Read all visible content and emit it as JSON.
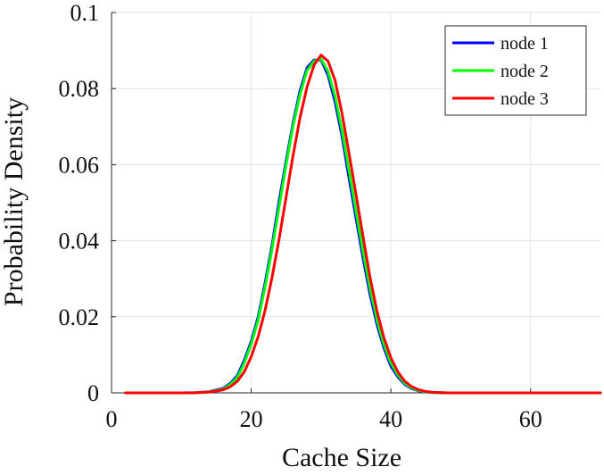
{
  "chart_data": {
    "type": "line",
    "xlabel": "Cache Size",
    "ylabel": "Probability Density",
    "xlim": [
      0,
      70
    ],
    "ylim": [
      0,
      0.1
    ],
    "x_ticks": [
      0,
      20,
      40,
      60
    ],
    "y_ticks": [
      0,
      0.02,
      0.04,
      0.06,
      0.08,
      0.1
    ],
    "x_tick_labels": [
      "0",
      "20",
      "40",
      "60"
    ],
    "y_tick_labels": [
      "0",
      "0.02",
      "0.04",
      "0.06",
      "0.08",
      "0.1"
    ],
    "grid": true,
    "legend_position": "top-right",
    "series": [
      {
        "name": "node 1",
        "color": "#0000ff",
        "x": [
          2,
          4,
          6,
          8,
          10,
          12,
          14,
          16,
          17,
          18,
          19,
          20,
          21,
          22,
          23,
          24,
          25,
          26,
          27,
          28,
          29,
          30,
          31,
          32,
          33,
          34,
          35,
          36,
          37,
          38,
          39,
          40,
          41,
          42,
          43,
          44,
          45,
          46,
          48,
          50,
          55,
          60,
          65,
          70
        ],
        "y": [
          0,
          0,
          0,
          0,
          0,
          5e-05,
          0.0003,
          0.0012,
          0.0025,
          0.0045,
          0.0085,
          0.0135,
          0.02,
          0.029,
          0.039,
          0.0505,
          0.061,
          0.071,
          0.0795,
          0.0855,
          0.0875,
          0.0875,
          0.0835,
          0.0765,
          0.0675,
          0.0565,
          0.046,
          0.0355,
          0.026,
          0.018,
          0.0118,
          0.007,
          0.0042,
          0.0022,
          0.0011,
          0.0005,
          0.0002,
          0.0001,
          0,
          0,
          0,
          0,
          0,
          0
        ]
      },
      {
        "name": "node 2",
        "color": "#00ff00",
        "x": [
          2,
          4,
          6,
          8,
          10,
          12,
          14,
          16,
          17,
          18,
          19,
          20,
          21,
          22,
          23,
          24,
          25,
          26,
          27,
          28,
          29,
          30,
          31,
          32,
          33,
          34,
          35,
          36,
          37,
          38,
          39,
          40,
          41,
          42,
          43,
          44,
          45,
          46,
          48,
          50,
          55,
          60,
          65,
          70
        ],
        "y": [
          0,
          0,
          0,
          0,
          0,
          4e-05,
          0.00025,
          0.001,
          0.0022,
          0.004,
          0.0078,
          0.0128,
          0.0192,
          0.028,
          0.038,
          0.049,
          0.06,
          0.0702,
          0.0785,
          0.0848,
          0.0872,
          0.0878,
          0.0845,
          0.078,
          0.069,
          0.0585,
          0.0478,
          0.0372,
          0.0275,
          0.0192,
          0.0127,
          0.0078,
          0.0047,
          0.0025,
          0.0013,
          0.0006,
          0.00025,
          0.0001,
          0,
          0,
          0,
          0,
          0,
          0
        ]
      },
      {
        "name": "node 3",
        "color": "#ff0000",
        "x": [
          2,
          4,
          6,
          8,
          10,
          12,
          14,
          16,
          17,
          18,
          19,
          20,
          21,
          22,
          23,
          24,
          25,
          26,
          27,
          28,
          29,
          30,
          31,
          32,
          33,
          34,
          35,
          36,
          37,
          38,
          39,
          40,
          41,
          42,
          43,
          44,
          45,
          46,
          48,
          50,
          55,
          60,
          65,
          70
        ],
        "y": [
          0,
          0,
          0,
          0,
          0,
          3e-05,
          0.0002,
          0.0008,
          0.0016,
          0.003,
          0.0055,
          0.0095,
          0.0148,
          0.0218,
          0.0305,
          0.0405,
          0.0515,
          0.0625,
          0.0725,
          0.0805,
          0.0862,
          0.0888,
          0.0872,
          0.0822,
          0.0735,
          0.063,
          0.0522,
          0.0412,
          0.0305,
          0.0215,
          0.0145,
          0.0092,
          0.0055,
          0.003,
          0.0016,
          0.0008,
          0.00035,
          0.00015,
          0,
          0,
          0,
          0,
          0,
          0
        ]
      }
    ]
  }
}
